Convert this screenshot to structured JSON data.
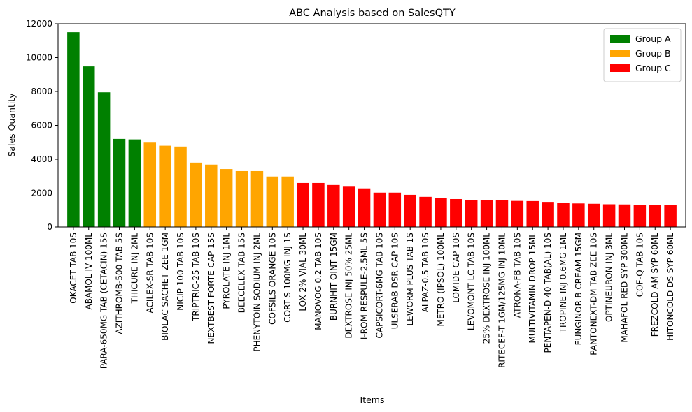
{
  "chart_data": {
    "type": "bar",
    "title": "ABC Analysis based on SalesQTY",
    "xlabel": "Items",
    "ylabel": "Sales Quantity",
    "ylim": [
      0,
      12000
    ],
    "yticks": [
      0,
      2000,
      4000,
      6000,
      8000,
      10000,
      12000
    ],
    "grid": false,
    "legend_position": "top-right",
    "groups": [
      {
        "name": "Group A",
        "color": "#008000"
      },
      {
        "name": "Group B",
        "color": "#ffa500"
      },
      {
        "name": "Group C",
        "color": "#ff0000"
      }
    ],
    "bars": [
      {
        "label": "OKACET TAB 10S",
        "value": 11500,
        "group": 0
      },
      {
        "label": "ABAMOL IV 100ML",
        "value": 9480,
        "group": 0
      },
      {
        "label": "PARA-650MG TAB (CETACIN) 15S",
        "value": 7950,
        "group": 0
      },
      {
        "label": "AZITHROMB-500 TAB 5S",
        "value": 5200,
        "group": 0
      },
      {
        "label": "THICURE INJ 2ML",
        "value": 5170,
        "group": 0
      },
      {
        "label": "ACILEX-SR TAB 10S",
        "value": 4980,
        "group": 1
      },
      {
        "label": "BIOLAC SACHET ZEE 1GM",
        "value": 4800,
        "group": 1
      },
      {
        "label": "NICIP 100 TAB 10S",
        "value": 4750,
        "group": 1
      },
      {
        "label": "TRIPTRIC-25 TAB 10S",
        "value": 3800,
        "group": 1
      },
      {
        "label": "NEXTBEST FORTE CAP 15S",
        "value": 3680,
        "group": 1
      },
      {
        "label": "PYROLATE INJ 1ML",
        "value": 3420,
        "group": 1
      },
      {
        "label": "BEECELEX TAB 15S",
        "value": 3300,
        "group": 1
      },
      {
        "label": "PHENYTOIN SODIUM INJ 2ML",
        "value": 3300,
        "group": 1
      },
      {
        "label": "COFSILS ORANGE 10S",
        "value": 2980,
        "group": 1
      },
      {
        "label": "CORT-S 100MG INJ 1S",
        "value": 2980,
        "group": 1
      },
      {
        "label": "LOX 2% VIAL 30ML",
        "value": 2600,
        "group": 2
      },
      {
        "label": "MANOVOG 0.2 TAB 10S",
        "value": 2600,
        "group": 2
      },
      {
        "label": "BURNHIT OINT 15GM",
        "value": 2480,
        "group": 2
      },
      {
        "label": "DEXTROSE INJ 50% 25ML",
        "value": 2380,
        "group": 2
      },
      {
        "label": "I-ROM RESPULE-2.5ML 5S",
        "value": 2280,
        "group": 2
      },
      {
        "label": "CAPSICORT-6MG TAB 10S",
        "value": 2030,
        "group": 2
      },
      {
        "label": "ULSERAB DSR CAP 10S",
        "value": 2030,
        "group": 2
      },
      {
        "label": "LEWORM PLUS TAB 1S",
        "value": 1900,
        "group": 2
      },
      {
        "label": "ALPAZ-0.5 TAB 10S",
        "value": 1780,
        "group": 2
      },
      {
        "label": "METRO (IPSOL) 100ML",
        "value": 1700,
        "group": 2
      },
      {
        "label": "LOMIDE CAP 10S",
        "value": 1650,
        "group": 2
      },
      {
        "label": "LEVOMONT LC TAB 10S",
        "value": 1600,
        "group": 2
      },
      {
        "label": "25% DEXTROSE INJ 100ML",
        "value": 1580,
        "group": 2
      },
      {
        "label": "RITECEF-T 1GM/125MG INJ 10ML",
        "value": 1570,
        "group": 2
      },
      {
        "label": "ATRONA-FB TAB 10S",
        "value": 1540,
        "group": 2
      },
      {
        "label": "MULTIVITAMIN DROP 15ML",
        "value": 1530,
        "group": 2
      },
      {
        "label": "PENTAPEN-D 40 TAB(AL) 10S",
        "value": 1480,
        "group": 2
      },
      {
        "label": "TROPINE INJ 0.6MG 1ML",
        "value": 1420,
        "group": 2
      },
      {
        "label": "FUNGINOR-B CREAM 15GM",
        "value": 1390,
        "group": 2
      },
      {
        "label": "PANTONEXT-DM TAB ZEE 10S",
        "value": 1370,
        "group": 2
      },
      {
        "label": "OPTINEURON INJ 3ML",
        "value": 1340,
        "group": 2
      },
      {
        "label": "MAHAFOL RED SYP 300ML",
        "value": 1330,
        "group": 2
      },
      {
        "label": "COF-Q TAB 10S",
        "value": 1300,
        "group": 2
      },
      {
        "label": "FREZCOLD AM SYP 60ML",
        "value": 1290,
        "group": 2
      },
      {
        "label": "HITONCOLD DS SYP 60ML",
        "value": 1280,
        "group": 2
      }
    ]
  }
}
